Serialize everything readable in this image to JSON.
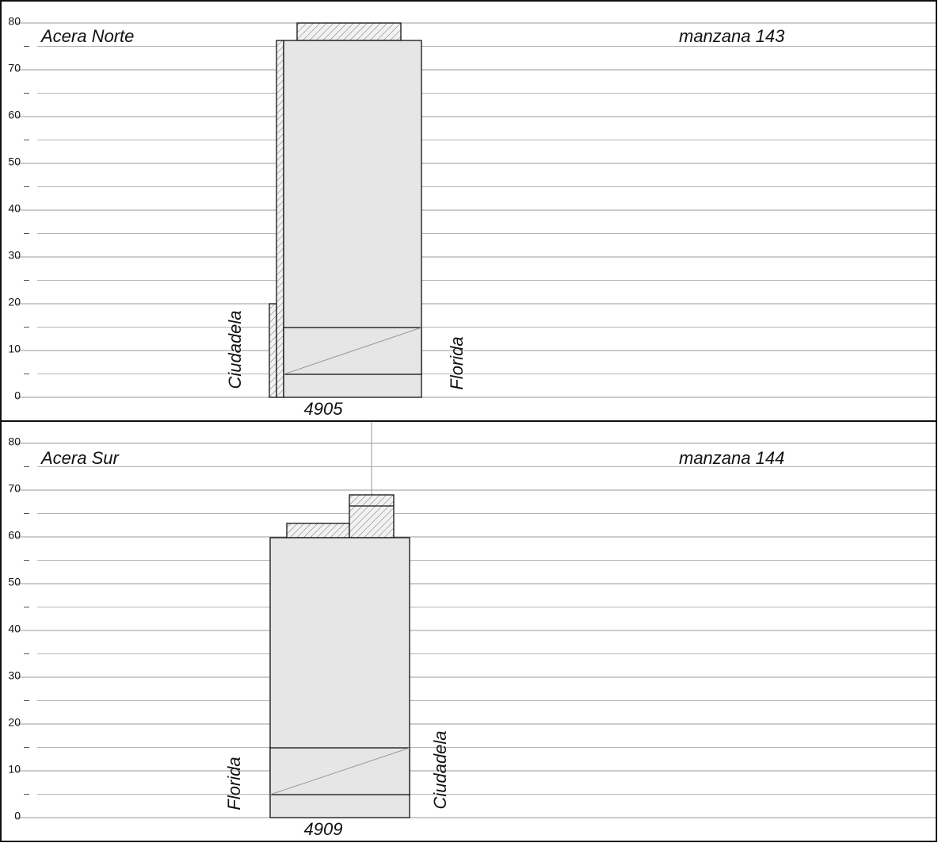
{
  "panels": [
    {
      "title": "Acera Norte",
      "block": "manzana 143",
      "lot": "4905",
      "street_left": "Ciudadela",
      "street_right": "Florida",
      "yticks": [
        0,
        10,
        20,
        30,
        40,
        50,
        60,
        70,
        80
      ]
    },
    {
      "title": "Acera Sur",
      "block": "manzana 144",
      "lot": "4909",
      "street_left": "Florida",
      "street_right": "Ciudadela",
      "yticks": [
        0,
        10,
        20,
        30,
        40,
        50,
        60,
        70,
        80
      ]
    }
  ]
}
